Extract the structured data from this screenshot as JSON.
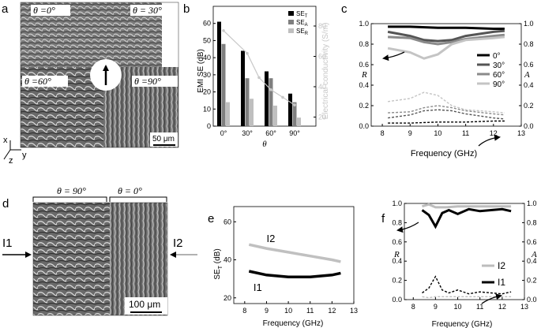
{
  "panel_letters": [
    "a",
    "b",
    "c",
    "d",
    "e",
    "f"
  ],
  "sem_a": {
    "labels": [
      "θ =0°",
      "θ = 30°",
      "θ =60°",
      "θ =90°"
    ],
    "scale_bar": "50 μm",
    "axes": [
      "x",
      "y",
      "z"
    ]
  },
  "sem_d": {
    "bracket_labels": [
      "θ = 90°",
      "θ = 0°"
    ],
    "left_label": "I1",
    "right_label": "I2",
    "scale_bar": "100 μm"
  },
  "chart_data": [
    {
      "panel": "b",
      "type": "bar",
      "xlabel": "θ",
      "ylabel": "EMI SE (dB)",
      "y2label": "Electrical conductivity (S/m)",
      "categories": [
        "0°",
        "30°",
        "60°",
        "90°"
      ],
      "ylim": [
        0,
        70
      ],
      "yticks": [
        0,
        10,
        20,
        30,
        40,
        50,
        60
      ],
      "y2lim": [
        14,
        93
      ],
      "y2ticks": [
        20,
        40,
        60,
        80
      ],
      "legend": "top-right",
      "series": [
        {
          "name": "SE_T",
          "legend_main": "SE",
          "legend_sub": "T",
          "color": "#000000",
          "values": [
            61,
            44,
            32,
            19
          ]
        },
        {
          "name": "SE_A",
          "legend_main": "SE",
          "legend_sub": "A",
          "color": "#7f7f7f",
          "values": [
            48,
            28,
            28,
            14
          ]
        },
        {
          "name": "SE_R",
          "legend_main": "SE",
          "legend_sub": "R",
          "color": "#bfbfbf",
          "values": [
            14,
            16,
            12,
            5
          ]
        }
      ],
      "conductivity": {
        "color": "#c8c8c8",
        "x": [
          0,
          30,
          45,
          60,
          75,
          90
        ],
        "values": [
          77,
          62,
          46,
          38,
          33,
          28
        ]
      }
    },
    {
      "panel": "c",
      "type": "line",
      "xlabel": "Frequency (GHz)",
      "ylabel": "R",
      "y2label": "A",
      "xlim": [
        7.6,
        13
      ],
      "xticks": [
        8,
        9,
        10,
        11,
        12,
        13
      ],
      "ylim": [
        0,
        1
      ],
      "yticks": [
        0.0,
        0.2,
        0.4,
        0.6,
        0.8,
        1.0
      ],
      "legend": "right",
      "series": [
        {
          "name": "0°",
          "color": "#000000",
          "x": [
            8.2,
            9,
            10,
            11,
            12,
            12.4
          ],
          "R": [
            0.97,
            0.97,
            0.96,
            0.96,
            0.95,
            0.95
          ],
          "A": [
            0.03,
            0.03,
            0.04,
            0.04,
            0.05,
            0.05
          ]
        },
        {
          "name": "30°",
          "color": "#555555",
          "x": [
            8.2,
            9,
            9.5,
            10,
            10.5,
            11,
            12,
            12.4
          ],
          "R": [
            0.92,
            0.88,
            0.84,
            0.83,
            0.84,
            0.88,
            0.92,
            0.93
          ],
          "A": [
            0.08,
            0.11,
            0.15,
            0.16,
            0.15,
            0.12,
            0.08,
            0.07
          ]
        },
        {
          "name": "60°",
          "color": "#8a8a8a",
          "x": [
            8.2,
            9,
            9.5,
            10,
            10.5,
            11,
            12,
            12.4
          ],
          "R": [
            0.87,
            0.86,
            0.82,
            0.8,
            0.82,
            0.85,
            0.88,
            0.89
          ],
          "A": [
            0.13,
            0.14,
            0.18,
            0.2,
            0.18,
            0.15,
            0.12,
            0.11
          ]
        },
        {
          "name": "90°",
          "color": "#c4c4c4",
          "x": [
            8.2,
            9,
            9.5,
            10,
            10.5,
            11,
            12,
            12.4
          ],
          "R": [
            0.76,
            0.72,
            0.66,
            0.7,
            0.8,
            0.84,
            0.86,
            0.87
          ],
          "A": [
            0.24,
            0.27,
            0.33,
            0.3,
            0.2,
            0.16,
            0.14,
            0.13
          ]
        }
      ]
    },
    {
      "panel": "e",
      "type": "line",
      "xlabel": "Frequency (GHz)",
      "ylabel_main": "SE",
      "ylabel_sub": "T",
      "ylabel_tail": " (dB)",
      "xlim": [
        7.5,
        13
      ],
      "xticks": [
        8,
        9,
        10,
        11,
        12,
        13
      ],
      "ylim": [
        17,
        68
      ],
      "yticks": [
        20,
        40,
        60
      ],
      "series": [
        {
          "name": "I2",
          "color": "#c0c0c0",
          "x": [
            8.2,
            9,
            10,
            11,
            12,
            12.4
          ],
          "values": [
            48,
            46,
            44,
            42,
            40,
            39
          ]
        },
        {
          "name": "I1",
          "color": "#000000",
          "x": [
            8.2,
            9,
            10,
            11,
            12,
            12.4
          ],
          "values": [
            34,
            32,
            31,
            31,
            32,
            33
          ]
        }
      ]
    },
    {
      "panel": "f",
      "type": "line",
      "xlabel": "Frequency (GHz)",
      "ylabel": "R",
      "y2label": "A",
      "xlim": [
        7.6,
        13
      ],
      "xticks": [
        8,
        9,
        10,
        11,
        12,
        13
      ],
      "ylim": [
        0,
        1
      ],
      "yticks": [
        0.0,
        0.2,
        0.4,
        0.6,
        0.8,
        1.0
      ],
      "legend": "right",
      "series": [
        {
          "name": "I2",
          "color": "#bdbdbd",
          "x": [
            8.4,
            8.7,
            9,
            9.5,
            10,
            11,
            12,
            12.4
          ],
          "R": [
            0.97,
            0.99,
            0.96,
            0.96,
            0.97,
            0.97,
            0.97,
            0.97
          ],
          "A": [
            0.03,
            0.02,
            0.03,
            0.03,
            0.03,
            0.03,
            0.03,
            0.03
          ]
        },
        {
          "name": "I1",
          "color": "#000000",
          "x": [
            8.4,
            8.7,
            9,
            9.3,
            9.6,
            10,
            10.5,
            11,
            11.5,
            12,
            12.4
          ],
          "R": [
            0.93,
            0.88,
            0.76,
            0.9,
            0.93,
            0.89,
            0.94,
            0.92,
            0.93,
            0.94,
            0.92
          ],
          "A": [
            0.07,
            0.12,
            0.24,
            0.1,
            0.07,
            0.1,
            0.06,
            0.08,
            0.07,
            0.06,
            0.08
          ]
        }
      ]
    }
  ]
}
